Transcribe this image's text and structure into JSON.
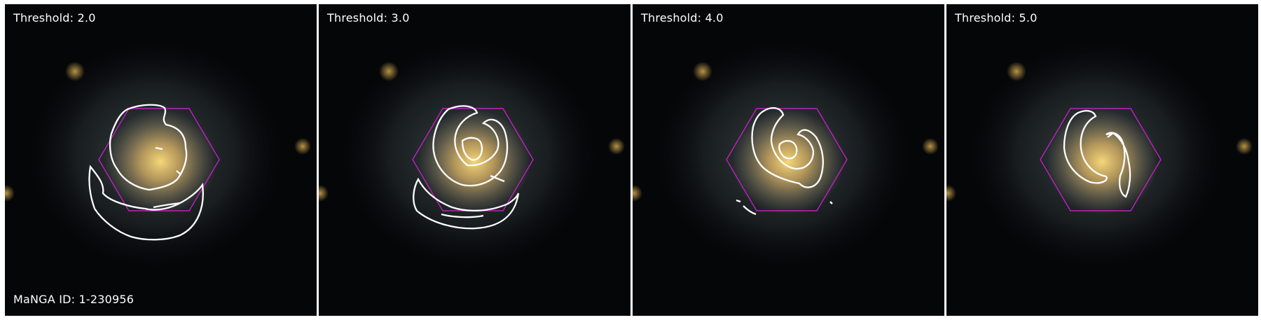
{
  "panels": [
    {
      "threshold_label": "Threshold: 2.0"
    },
    {
      "threshold_label": "Threshold: 3.0"
    },
    {
      "threshold_label": "Threshold: 4.0"
    },
    {
      "threshold_label": "Threshold: 5.0"
    }
  ],
  "galaxy_id_label": "MaNGA ID: 1-230956",
  "colors": {
    "background": "#050608",
    "galaxy_core": "#f0c860",
    "galaxy_halo": "#6c7a80",
    "hexagon": "#c020c0",
    "contour": "#ffffff"
  }
}
